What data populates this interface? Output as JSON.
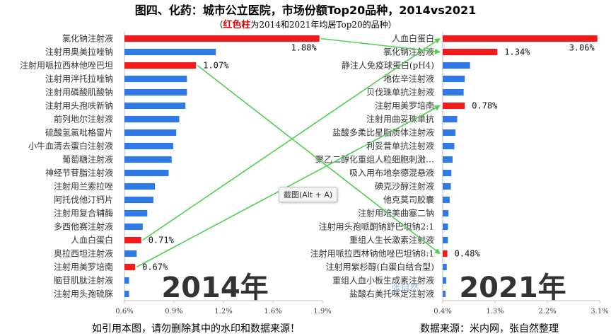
{
  "title": "图四、化药：城市公立医院，市场份额Top20品种，2014vs2021",
  "subtitle_red": "红色柱",
  "subtitle_rest": "为2014和2021年均居Top20的品种）",
  "subtitle_open": "（",
  "tooltip_text": "截图(Alt + A)",
  "footer_left": "如引用本图，请勿删除其中的水印和数据来源！",
  "footer_right": "数据来源：米内网，张自然整理",
  "watermark": "张自然",
  "colors": {
    "blue": "#2f7ae5",
    "red": "#f21b1b",
    "arrow": "#4fd04f"
  },
  "chart_data": [
    {
      "type": "bar",
      "orientation": "horizontal",
      "year_label": "2014年",
      "categories": [
        "氯化钠注射液",
        "注射用奥美拉唑钠",
        "注射用哌拉西林他唑巴坦",
        "注射用泮托拉唑钠",
        "注射用磷酸肌酸钠",
        "注射用头孢呋新钠",
        "前列地尔注射液",
        "硫酸氢氯吡格雷片",
        "小牛血清去蛋白注射液",
        "葡萄糖注射液",
        "神经节苷脂注射液",
        "注射用兰索拉唑",
        "阿托伐他汀钙片",
        "注射用复合辅酶",
        "多西他赛注射液",
        "人血白蛋白",
        "奥拉西坦注射液",
        "注射用美罗培南",
        "脑苷肌肽注射液",
        "注射用头孢硫脒"
      ],
      "values": [
        1.88,
        1.2,
        1.07,
        1.01,
        1.01,
        1.0,
        0.96,
        0.94,
        0.92,
        0.91,
        0.89,
        0.8,
        0.79,
        0.75,
        0.72,
        0.71,
        0.68,
        0.67,
        0.63,
        0.63
      ],
      "highlight": [
        true,
        false,
        true,
        false,
        false,
        false,
        false,
        false,
        false,
        false,
        false,
        false,
        false,
        false,
        false,
        true,
        false,
        true,
        false,
        false
      ],
      "data_labels": [
        "1.88%",
        "",
        "1.07%",
        "",
        "",
        "",
        "",
        "",
        "",
        "",
        "",
        "",
        "",
        "",
        "",
        "0.71%",
        "",
        "0.67%",
        "",
        ""
      ],
      "xlim": [
        0.6,
        1.9
      ],
      "xticks": [
        "0.6%",
        "0.9%",
        "1.2%",
        "1.6%",
        "1.9%"
      ]
    },
    {
      "type": "bar",
      "orientation": "horizontal",
      "year_label": "2021年",
      "categories": [
        "人血白蛋白",
        "氯化钠注射液",
        "静注人免疫球蛋白(pH4)",
        "地佐辛注射液",
        "贝伐珠单抗注射液",
        "注射用美罗培南",
        "注射用曲妥珠单抗",
        "盐酸多柔比星脂质体注射液",
        "利妥昔单抗注射液",
        "聚乙二醇化重组人粒细胞刺激…",
        "吸入用布地奈德混悬液",
        "碘克沙醇注射液",
        "他克莫司胶囊",
        "注射用培美曲塞二钠",
        "注射用头孢哌酮钠舒巴坦钠2:1",
        "重组人生长激素注射液",
        "注射用哌拉西林钠他唑巴坦钠8:1",
        "注射用紫杉醇(白蛋白结合型)",
        "重组人血小板生成素注射液",
        "盐酸右美托咪定注射液"
      ],
      "values": [
        3.06,
        1.34,
        0.87,
        0.78,
        0.76,
        0.78,
        0.65,
        0.62,
        0.6,
        0.57,
        0.55,
        0.54,
        0.52,
        0.5,
        0.49,
        0.49,
        0.48,
        0.47,
        0.46,
        0.45
      ],
      "highlight": [
        true,
        true,
        false,
        false,
        false,
        true,
        false,
        false,
        false,
        false,
        false,
        false,
        false,
        false,
        false,
        false,
        true,
        false,
        false,
        false
      ],
      "data_labels": [
        "3.06%",
        "1.34%",
        "",
        "",
        "",
        "0.78%",
        "",
        "",
        "",
        "",
        "",
        "",
        "",
        "",
        "",
        "",
        "0.48%",
        "",
        "",
        ""
      ],
      "xlim": [
        0.4,
        3.1
      ],
      "xticks": [
        "0.4%",
        "1.3%",
        "2.2%",
        "3.1%"
      ]
    }
  ],
  "links": [
    {
      "from": 0,
      "to": 1
    },
    {
      "from": 2,
      "to": 16
    },
    {
      "from": 15,
      "to": 0
    },
    {
      "from": 17,
      "to": 5
    }
  ]
}
